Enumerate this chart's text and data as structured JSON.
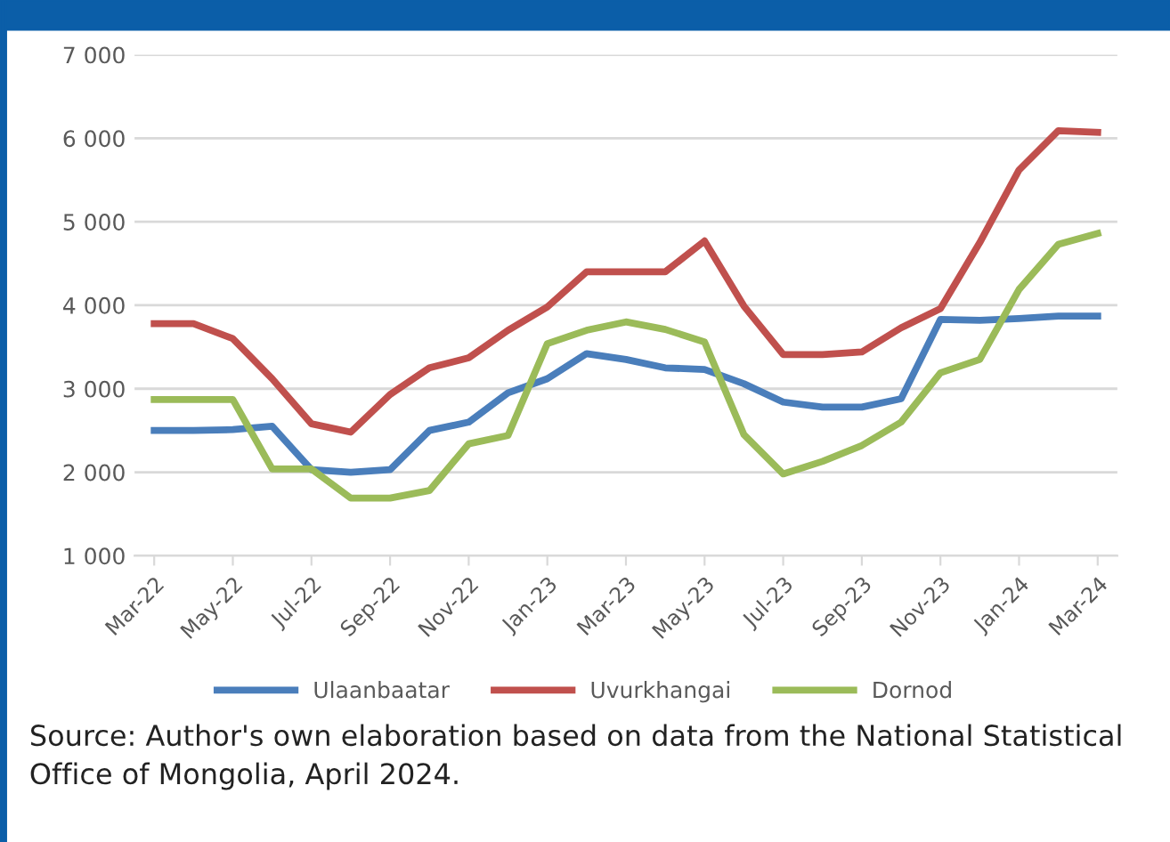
{
  "chart_data": {
    "type": "line",
    "categories": [
      "Mar-22",
      null,
      "May-22",
      null,
      "Jul-22",
      null,
      "Sep-22",
      null,
      "Nov-22",
      null,
      "Jan-23",
      null,
      "Mar-23",
      null,
      "May-23",
      null,
      "Jul-23",
      null,
      "Sep-23",
      null,
      "Nov-23",
      null,
      "Jan-24",
      null,
      "Mar-24"
    ],
    "series": [
      {
        "name": "Ulaanbaatar",
        "color": "#4a7ebb",
        "values": [
          2500,
          2500,
          2510,
          2550,
          2030,
          2000,
          2030,
          2500,
          2600,
          2950,
          3120,
          3420,
          3350,
          3250,
          3230,
          3060,
          2840,
          2780,
          2780,
          2880,
          3830,
          3820,
          3840,
          3870,
          3870
        ]
      },
      {
        "name": "Uvurkhangai",
        "color": "#c0504d",
        "values": [
          3780,
          3780,
          3600,
          3120,
          2580,
          2480,
          2930,
          3250,
          3370,
          3700,
          3980,
          4400,
          4400,
          4400,
          4770,
          3990,
          3410,
          3410,
          3440,
          3730,
          3960,
          4750,
          5620,
          6090,
          6070
        ]
      },
      {
        "name": "Dornod",
        "color": "#9bbb59",
        "values": [
          2870,
          2870,
          2870,
          2040,
          2040,
          1690,
          1690,
          1780,
          2340,
          2440,
          3540,
          3700,
          3800,
          3710,
          3560,
          2450,
          1980,
          2130,
          2320,
          2600,
          3190,
          3350,
          4190,
          4730,
          4860
        ]
      }
    ],
    "ylim": [
      1000,
      7000
    ],
    "yticks": [
      {
        "value": 1000,
        "label": "1 000"
      },
      {
        "value": 2000,
        "label": "2 000"
      },
      {
        "value": 3000,
        "label": "3 000"
      },
      {
        "value": 4000,
        "label": "4 000"
      },
      {
        "value": 5000,
        "label": "5 000"
      },
      {
        "value": 6000,
        "label": "6 000"
      },
      {
        "value": 7000,
        "label": "7 000"
      }
    ],
    "grid": "y",
    "legend": "bottom",
    "marker": "none",
    "line_style": "solid",
    "annotations": [
      "Source: Author's own elaboration based on data from the National Statistical Office of Mongolia, April 2024."
    ]
  }
}
